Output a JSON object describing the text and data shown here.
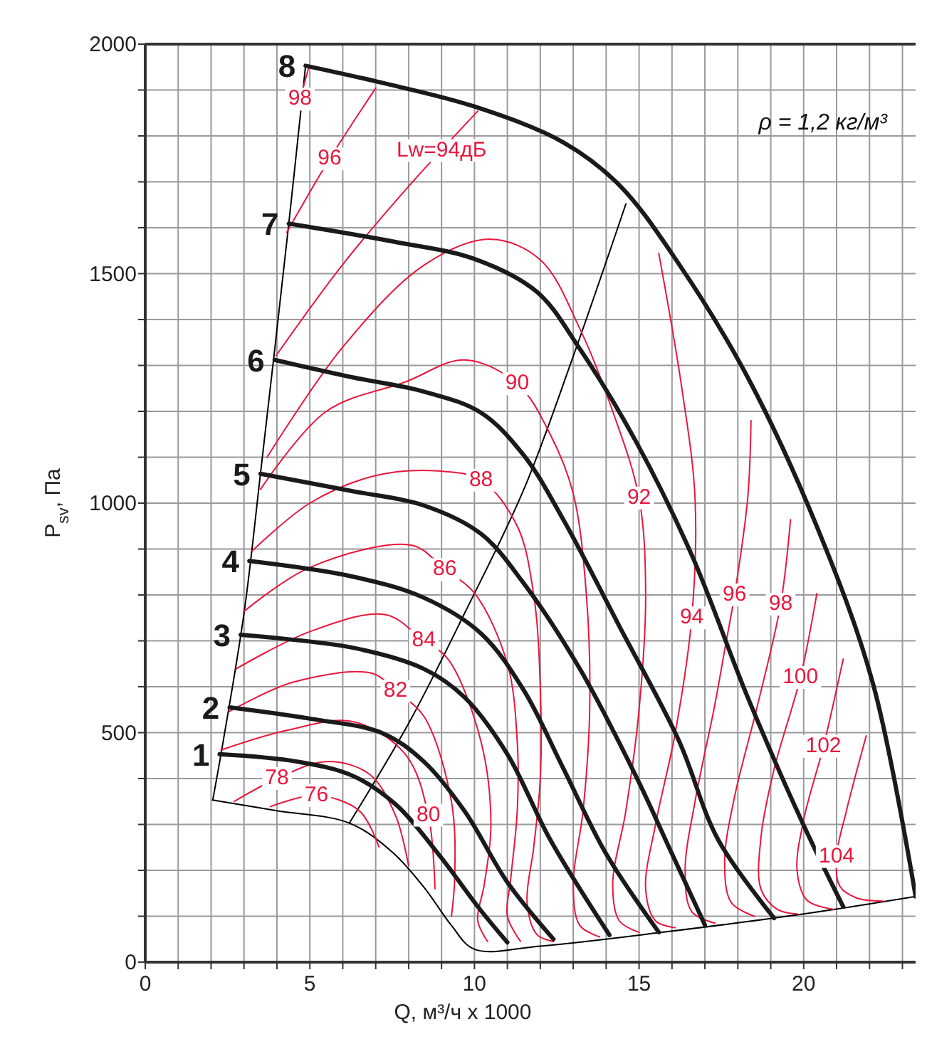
{
  "chart_data": {
    "type": "line",
    "xlabel": "Q, м³/ч x 1000",
    "ylabel": "P$_{sv}$, Па",
    "xlim": [
      0,
      23.4
    ],
    "ylim": [
      0,
      2000
    ],
    "xticks": [
      0,
      {
        "value": 1,
        "label": null
      },
      {
        "value": 2,
        "label": null
      },
      {
        "value": 3,
        "label": null
      },
      {
        "value": 4,
        "label": null
      },
      5,
      {
        "value": 6,
        "label": null
      },
      {
        "value": 7,
        "label": null
      },
      {
        "value": 8,
        "label": null
      },
      {
        "value": 9,
        "label": null
      },
      10,
      {
        "value": 11,
        "label": null
      },
      {
        "value": 12,
        "label": null
      },
      {
        "value": 13,
        "label": null
      },
      {
        "value": 14,
        "label": null
      },
      15,
      {
        "value": 16,
        "label": null
      },
      {
        "value": 17,
        "label": null
      },
      {
        "value": 18,
        "label": null
      },
      {
        "value": 19,
        "label": null
      },
      20,
      {
        "value": 21,
        "label": null
      },
      {
        "value": 22,
        "label": null
      },
      {
        "value": 23,
        "label": null
      }
    ],
    "yticks": [
      0,
      {
        "value": 100,
        "label": null
      },
      {
        "value": 200,
        "label": null
      },
      {
        "value": 300,
        "label": null
      },
      {
        "value": 400,
        "label": null
      },
      500,
      {
        "value": 600,
        "label": null
      },
      {
        "value": 700,
        "label": null
      },
      {
        "value": 800,
        "label": null
      },
      {
        "value": 900,
        "label": null
      },
      1000,
      {
        "value": 1100,
        "label": null
      },
      {
        "value": 1200,
        "label": null
      },
      {
        "value": 1300,
        "label": null
      },
      {
        "value": 1400,
        "label": null
      },
      1500,
      {
        "value": 1600,
        "label": null
      },
      {
        "value": 1700,
        "label": null
      },
      {
        "value": 1800,
        "label": null
      },
      {
        "value": 1900,
        "label": null
      },
      2000
    ],
    "grid": true,
    "marker": "none",
    "line_style": "solid",
    "series": [
      {
        "color": "#000000",
        "x": [
          2.05,
          2.3,
          3.0,
          3.5,
          4.36,
          4.87
        ],
        "values": [
          353,
          453,
          760,
          1064,
          1609,
          1953
        ]
      },
      {
        "color": "#000000",
        "x": [
          2.05,
          4,
          6.2,
          7.5,
          8.5,
          9.3,
          10,
          12,
          15.7,
          20,
          23.4
        ],
        "values": [
          353,
          330,
          303,
          240,
          160,
          80,
          28,
          35,
          65,
          105,
          143
        ]
      },
      {
        "color": "#000000",
        "x": [
          6.2,
          8,
          9.7,
          11.5,
          13,
          14.6
        ],
        "values": [
          303,
          520,
          760,
          1030,
          1320,
          1652
        ]
      },
      {
        "color": "#e8173c",
        "x": [
          3.8,
          5.2,
          6.5,
          7.1
        ],
        "values": [
          339,
          363,
          330,
          251
        ]
      },
      {
        "color": "#e8173c",
        "x": [
          2.7,
          4,
          5.5,
          6.8,
          7.6,
          8.0
        ],
        "values": [
          350,
          400,
          437,
          410,
          320,
          210
        ]
      },
      {
        "color": "#e8173c",
        "x": [
          2.3,
          4.3,
          6.3,
          7.9,
          8.6,
          8.8
        ],
        "values": [
          462,
          505,
          524,
          453,
          320,
          160
        ]
      },
      {
        "color": "#e8173c",
        "x": [
          2.55,
          4.5,
          6.9,
          7.6,
          8.46,
          9.3,
          9.4,
          9.3
        ],
        "values": [
          546,
          610,
          629,
          590,
          536,
          350,
          183,
          100
        ]
      },
      {
        "color": "#e8173c",
        "x": [
          2.76,
          5,
          7.3,
          8.46,
          9.2,
          10.2,
          10.5,
          10.3,
          10.1,
          10.4
        ],
        "values": [
          639,
          720,
          757,
          700,
          660,
          480,
          300,
          170,
          90,
          45
        ]
      },
      {
        "color": "#e8173c",
        "x": [
          2.98,
          5,
          8.1,
          9.1,
          10.0,
          11.0,
          11.3,
          11.3,
          11.1,
          11.0,
          11.4
        ],
        "values": [
          763,
          860,
          908,
          855,
          804,
          650,
          480,
          330,
          180,
          100,
          45
        ]
      },
      {
        "color": "#e8173c",
        "x": [
          3.25,
          5,
          7,
          8.9,
          10.2,
          11.3,
          11.8,
          12.0,
          12.0,
          11.8,
          11.6,
          11.9,
          12.4
        ],
        "values": [
          896,
          1000,
          1060,
          1070,
          1050,
          950,
          800,
          600,
          400,
          250,
          130,
          60,
          45
        ]
      },
      {
        "color": "#e8173c",
        "x": [
          3.5,
          5.5,
          7.9,
          9.7,
          11.3,
          12.3,
          13.0,
          13.4,
          13.5,
          13.3,
          13.0,
          13.2,
          13.8
        ],
        "values": [
          1030,
          1200,
          1264,
          1312,
          1260,
          1150,
          1021,
          800,
          550,
          330,
          170,
          80,
          55
        ]
      },
      {
        "color": "#e8173c",
        "x": [
          3.7,
          6,
          8.5,
          10.5,
          12,
          13.2,
          14.2,
          15.0,
          15.2,
          15.0,
          14.6,
          14.2,
          14.4,
          15
        ],
        "values": [
          1100,
          1340,
          1520,
          1575,
          1530,
          1380,
          1200,
          1011,
          800,
          550,
          330,
          170,
          90,
          65
        ]
      },
      {
        "color": "#e8173c",
        "x": [
          3.97,
          6,
          8,
          10.1,
          12.8,
          15.6,
          16.3,
          16.7,
          16.6,
          16.1,
          15.5,
          15.2,
          15.5,
          16.1
        ],
        "values": [
          1321,
          1520,
          1690,
          1854,
          null,
          1544,
          1250,
          1011,
          750,
          500,
          300,
          160,
          90,
          75
        ]
      },
      {
        "color": "#e8173c",
        "x": [
          4.3,
          5.6,
          7.0,
          12.7,
          18.4,
          18.3,
          17.9,
          17.6,
          17.3,
          16.7,
          16.4,
          16.6,
          17.3
        ],
        "values": [
          1590,
          1750,
          1904,
          null,
          1180,
          1011,
          800,
          680,
          560,
          350,
          200,
          110,
          85
        ]
      },
      {
        "color": "#e8173c",
        "x": [
          4.7,
          4.97,
          12.3,
          19.6,
          19.3,
          18.6,
          17.9,
          17.6,
          17.8,
          18.5
        ],
        "values": [
          1880,
          1950,
          null,
          964,
          780,
          560,
          360,
          220,
          130,
          100
        ]
      },
      {
        "color": "#e8173c",
        "x": [
          20.4,
          19.9,
          19.1,
          18.7,
          18.7,
          19.2,
          19.8
        ],
        "values": [
          803,
          620,
          420,
          270,
          160,
          115,
          105
        ]
      },
      {
        "color": "#e8173c",
        "x": [
          21.2,
          20.6,
          20.0,
          19.8,
          20.1,
          20.9
        ],
        "values": [
          660,
          470,
          310,
          200,
          135,
          115
        ]
      },
      {
        "color": "#e8173c",
        "x": [
          21.9,
          21.3,
          21.0,
          21.1,
          21.6,
          22.4
        ],
        "values": [
          493,
          330,
          230,
          165,
          140,
          133
        ]
      },
      {
        "name": "1",
        "color": "#1a1a1a",
        "x": [
          2.26,
          4.6,
          6.3,
          7.6,
          8.9,
          10.2,
          11
        ],
        "values": [
          453,
          437,
          406,
          344,
          236,
          112,
          43
        ]
      },
      {
        "name": "2",
        "color": "#1a1a1a",
        "x": [
          2.56,
          5.04,
          7.2,
          8.46,
          9.7,
          11,
          12.4
        ],
        "values": [
          555,
          530,
          499,
          437,
          329,
          174,
          50
        ]
      },
      {
        "name": "3",
        "color": "#1a1a1a",
        "x": [
          2.9,
          6.3,
          8.46,
          9.7,
          11,
          12.3,
          14.1
        ],
        "values": [
          713,
          685,
          639,
          577,
          453,
          267,
          59
        ]
      },
      {
        "name": "4",
        "color": "#1a1a1a",
        "x": [
          3.16,
          6.3,
          8.46,
          10.2,
          11.5,
          12.7,
          14,
          15.6
        ],
        "values": [
          874,
          840,
          794,
          716,
          592,
          422,
          236,
          65
        ]
      },
      {
        "name": "5",
        "color": "#1a1a1a",
        "x": [
          3.5,
          6.3,
          8.46,
          10.2,
          11.5,
          13.2,
          14.9,
          16,
          17
        ],
        "values": [
          1064,
          1026,
          995,
          933,
          825,
          639,
          406,
          236,
          81
        ]
      },
      {
        "name": "6",
        "color": "#1a1a1a",
        "x": [
          3.93,
          6.3,
          8.46,
          10.2,
          11.5,
          12.7,
          14.4,
          16.2,
          17.4,
          19.1
        ],
        "values": [
          1312,
          1274,
          1243,
          1197,
          1104,
          964,
          732,
          484,
          267,
          96
        ]
      },
      {
        "name": "7",
        "color": "#1a1a1a",
        "x": [
          4.36,
          7.6,
          10,
          11.9,
          13.2,
          14.9,
          16.6,
          18.3,
          20,
          21.2
        ],
        "values": [
          1609,
          1569,
          1532,
          1460,
          1336,
          1135,
          887,
          577,
          298,
          121
        ]
      },
      {
        "name": "8",
        "color": "#1a1a1a",
        "x": [
          4.87,
          7.18,
          10,
          12.7,
          14.4,
          16.2,
          18.3,
          20.4,
          22.1,
          23.4
        ],
        "values": [
          1953,
          1916,
          1864,
          1786,
          1693,
          1522,
          1274,
          949,
          608,
          143
        ]
      }
    ],
    "annotations": [
      "ρ = 1,2 кг/м³",
      {
        "text": "76",
        "x": 5.2,
        "y": 363
      },
      {
        "text": "78",
        "x": 4,
        "y": 400
      },
      {
        "text": "80",
        "x": 8.6,
        "y": 320
      },
      {
        "text": "82",
        "x": 7.6,
        "y": 590
      },
      {
        "text": "84",
        "x": 8.46,
        "y": 700
      },
      {
        "text": "86",
        "x": 9.1,
        "y": 855
      },
      {
        "text": "88",
        "x": 10.2,
        "y": 1050
      },
      {
        "text": "90",
        "x": 11.3,
        "y": 1260
      },
      {
        "text": "92",
        "x": 15.0,
        "y": 1011
      },
      {
        "text": "Lw=94дБ",
        "x": 9.0,
        "y": 1768
      },
      {
        "text": "94",
        "x": 16.6,
        "y": 750
      },
      {
        "text": "96",
        "x": 5.6,
        "y": 1750
      },
      {
        "text": "96",
        "x": 17.9,
        "y": 800
      },
      {
        "text": "98",
        "x": 4.7,
        "y": 1880
      },
      {
        "text": "98",
        "x": 19.3,
        "y": 780
      },
      {
        "text": "100",
        "x": 19.9,
        "y": 620
      },
      {
        "text": "102",
        "x": 20.6,
        "y": 470
      },
      {
        "text": "104",
        "x": 21.0,
        "y": 230
      }
    ]
  }
}
